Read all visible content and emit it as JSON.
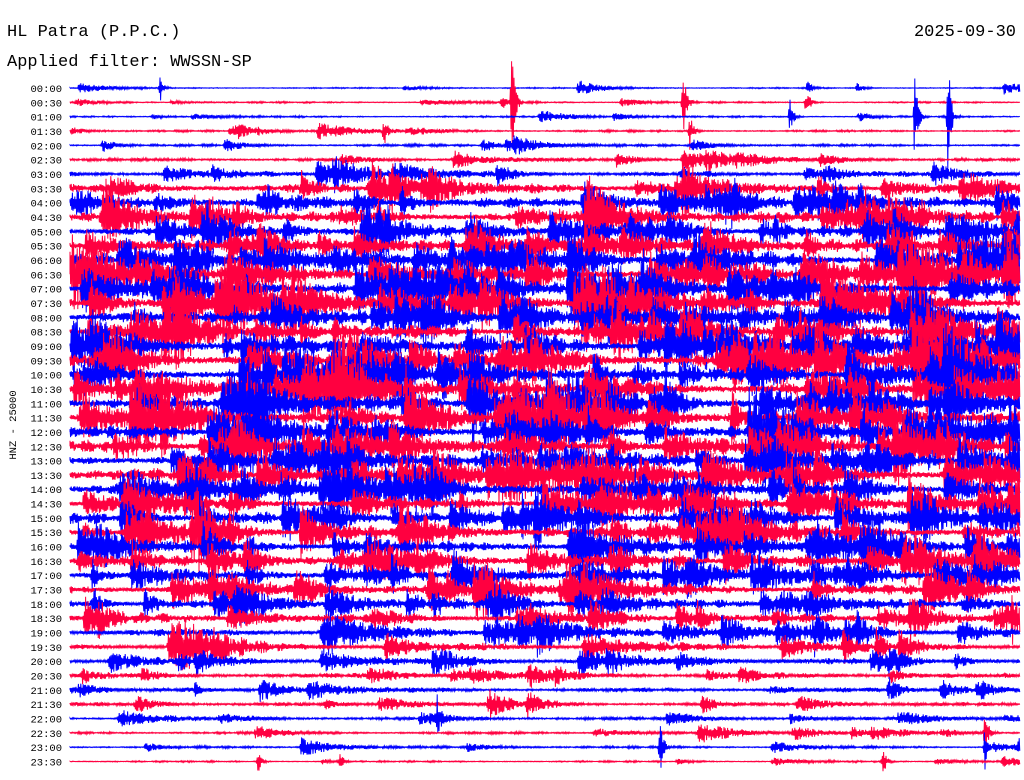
{
  "chart_data": {
    "type": "line",
    "title": "HL Patra (P.P.C.)",
    "subtitle": "Applied filter: WWSSN-SP",
    "date": "2025-09-30",
    "xlabel": "",
    "ylabel": "HNZ - 25000",
    "colors": [
      "#0000ff",
      "#ff0040"
    ],
    "rows": [
      {
        "label": "00:00",
        "color": "#0000ff"
      },
      {
        "label": "00:30",
        "color": "#ff0040"
      },
      {
        "label": "01:00",
        "color": "#0000ff"
      },
      {
        "label": "01:30",
        "color": "#ff0040"
      },
      {
        "label": "02:00",
        "color": "#0000ff"
      },
      {
        "label": "02:30",
        "color": "#ff0040"
      },
      {
        "label": "03:00",
        "color": "#0000ff"
      },
      {
        "label": "03:30",
        "color": "#ff0040"
      },
      {
        "label": "04:00",
        "color": "#0000ff"
      },
      {
        "label": "04:30",
        "color": "#ff0040"
      },
      {
        "label": "05:00",
        "color": "#0000ff"
      },
      {
        "label": "05:30",
        "color": "#ff0040"
      },
      {
        "label": "06:00",
        "color": "#0000ff"
      },
      {
        "label": "06:30",
        "color": "#ff0040"
      },
      {
        "label": "07:00",
        "color": "#0000ff"
      },
      {
        "label": "07:30",
        "color": "#ff0040"
      },
      {
        "label": "08:00",
        "color": "#0000ff"
      },
      {
        "label": "08:30",
        "color": "#ff0040"
      },
      {
        "label": "09:00",
        "color": "#0000ff"
      },
      {
        "label": "09:30",
        "color": "#ff0040"
      },
      {
        "label": "10:00",
        "color": "#0000ff"
      },
      {
        "label": "10:30",
        "color": "#ff0040"
      },
      {
        "label": "11:00",
        "color": "#0000ff"
      },
      {
        "label": "11:30",
        "color": "#ff0040"
      },
      {
        "label": "12:00",
        "color": "#0000ff"
      },
      {
        "label": "12:30",
        "color": "#ff0040"
      },
      {
        "label": "13:00",
        "color": "#0000ff"
      },
      {
        "label": "13:30",
        "color": "#ff0040"
      },
      {
        "label": "14:00",
        "color": "#0000ff"
      },
      {
        "label": "14:30",
        "color": "#ff0040"
      },
      {
        "label": "15:00",
        "color": "#0000ff"
      },
      {
        "label": "15:30",
        "color": "#ff0040"
      },
      {
        "label": "16:00",
        "color": "#0000ff"
      },
      {
        "label": "16:30",
        "color": "#ff0040"
      },
      {
        "label": "17:00",
        "color": "#0000ff"
      },
      {
        "label": "17:30",
        "color": "#ff0040"
      },
      {
        "label": "18:00",
        "color": "#0000ff"
      },
      {
        "label": "18:30",
        "color": "#ff0040"
      },
      {
        "label": "19:00",
        "color": "#0000ff"
      },
      {
        "label": "19:30",
        "color": "#ff0040"
      },
      {
        "label": "20:00",
        "color": "#0000ff"
      },
      {
        "label": "20:30",
        "color": "#ff0040"
      },
      {
        "label": "21:00",
        "color": "#0000ff"
      },
      {
        "label": "21:30",
        "color": "#ff0040"
      },
      {
        "label": "22:00",
        "color": "#0000ff"
      },
      {
        "label": "22:30",
        "color": "#ff0040"
      },
      {
        "label": "23:00",
        "color": "#0000ff"
      },
      {
        "label": "23:30",
        "color": "#ff0040"
      }
    ]
  }
}
